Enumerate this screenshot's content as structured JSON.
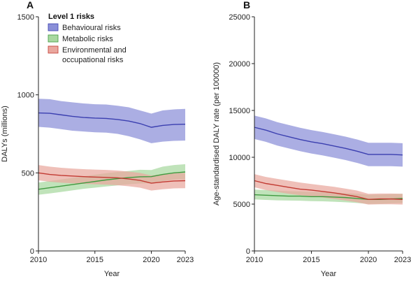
{
  "chart_data": [
    {
      "panel": "A",
      "type": "area",
      "title": "",
      "xlabel": "Year",
      "ylabel": "DALYs (millions)",
      "xlim": [
        2010,
        2023
      ],
      "ylim": [
        0,
        1500
      ],
      "xticks": [
        2010,
        2015,
        2020,
        2023
      ],
      "yticks": [
        0,
        500,
        1000,
        1500
      ],
      "legend": {
        "title": "Level 1 risks",
        "placement": "top-left",
        "entries": [
          "Behavioural risks",
          "Metabolic risks",
          "Environmental and occupational risks"
        ]
      },
      "x": [
        2010,
        2011,
        2012,
        2013,
        2014,
        2015,
        2016,
        2017,
        2018,
        2019,
        2020,
        2021,
        2022,
        2023
      ],
      "series": [
        {
          "name": "Behavioural risks",
          "values": [
            884,
            882,
            872,
            862,
            855,
            851,
            849,
            842,
            832,
            816,
            792,
            804,
            810,
            812
          ],
          "lower": [
            795,
            790,
            780,
            770,
            765,
            760,
            758,
            750,
            735,
            715,
            690,
            700,
            705,
            707
          ],
          "upper": [
            975,
            972,
            960,
            952,
            945,
            940,
            938,
            930,
            920,
            900,
            880,
            900,
            907,
            910
          ]
        },
        {
          "name": "Metabolic risks",
          "values": [
            395,
            405,
            415,
            425,
            435,
            445,
            455,
            463,
            470,
            475,
            476,
            490,
            500,
            506
          ],
          "lower": [
            360,
            368,
            378,
            388,
            398,
            405,
            413,
            420,
            427,
            432,
            433,
            447,
            457,
            460
          ],
          "upper": [
            438,
            448,
            458,
            468,
            478,
            488,
            498,
            506,
            512,
            520,
            518,
            540,
            550,
            556
          ]
        },
        {
          "name": "Environmental and occupational risks",
          "values": [
            500,
            490,
            484,
            480,
            476,
            473,
            471,
            468,
            461,
            452,
            434,
            442,
            448,
            450
          ],
          "lower": [
            452,
            443,
            437,
            433,
            430,
            427,
            425,
            421,
            414,
            405,
            387,
            395,
            401,
            402
          ],
          "upper": [
            550,
            540,
            533,
            528,
            524,
            521,
            519,
            515,
            508,
            500,
            483,
            492,
            498,
            500
          ]
        }
      ]
    },
    {
      "panel": "B",
      "type": "area",
      "title": "",
      "xlabel": "Year",
      "ylabel": "Age-standardised DALY rate (per 100000)",
      "xlim": [
        2010,
        2023
      ],
      "ylim": [
        0,
        25000
      ],
      "xticks": [
        2010,
        2015,
        2020,
        2023
      ],
      "yticks": [
        0,
        5000,
        10000,
        15000,
        20000,
        25000
      ],
      "x": [
        2010,
        2011,
        2012,
        2013,
        2014,
        2015,
        2016,
        2017,
        2018,
        2019,
        2020,
        2021,
        2022,
        2023
      ],
      "series": [
        {
          "name": "Behavioural risks",
          "values": [
            13200,
            12900,
            12500,
            12200,
            11900,
            11650,
            11450,
            11200,
            10950,
            10650,
            10300,
            10300,
            10300,
            10250
          ],
          "lower": [
            11950,
            11650,
            11250,
            10950,
            10650,
            10400,
            10200,
            9950,
            9700,
            9400,
            9050,
            9050,
            9050,
            9000
          ],
          "upper": [
            14450,
            14150,
            13750,
            13450,
            13150,
            12900,
            12700,
            12450,
            12200,
            11900,
            11550,
            11550,
            11550,
            11500
          ]
        },
        {
          "name": "Metabolic risks",
          "values": [
            6000,
            5950,
            5900,
            5850,
            5850,
            5800,
            5800,
            5750,
            5700,
            5600,
            5500,
            5500,
            5550,
            5600
          ],
          "lower": [
            5500,
            5450,
            5400,
            5380,
            5360,
            5320,
            5300,
            5250,
            5200,
            5120,
            5020,
            5030,
            5080,
            5120
          ],
          "upper": [
            6550,
            6500,
            6450,
            6380,
            6360,
            6300,
            6280,
            6230,
            6180,
            6100,
            6000,
            6020,
            6060,
            6100
          ]
        },
        {
          "name": "Environmental and occupational risks",
          "values": [
            7500,
            7200,
            7000,
            6800,
            6600,
            6500,
            6350,
            6200,
            6000,
            5800,
            5500,
            5550,
            5550,
            5500
          ],
          "lower": [
            6800,
            6500,
            6300,
            6100,
            5950,
            5850,
            5700,
            5550,
            5380,
            5200,
            4950,
            4980,
            4980,
            4950
          ],
          "upper": [
            8200,
            7900,
            7700,
            7500,
            7300,
            7150,
            7000,
            6850,
            6650,
            6450,
            6100,
            6130,
            6130,
            6100
          ]
        }
      ]
    }
  ],
  "colors": {
    "behavioural_line": "#3b3fb0",
    "behavioural_band": "#8a8fd8",
    "metabolic_line": "#3f9a3f",
    "metabolic_band": "#a8d8a0",
    "environmental_line": "#c23a32",
    "environmental_band": "#e9a79e",
    "axis": "#222222"
  }
}
